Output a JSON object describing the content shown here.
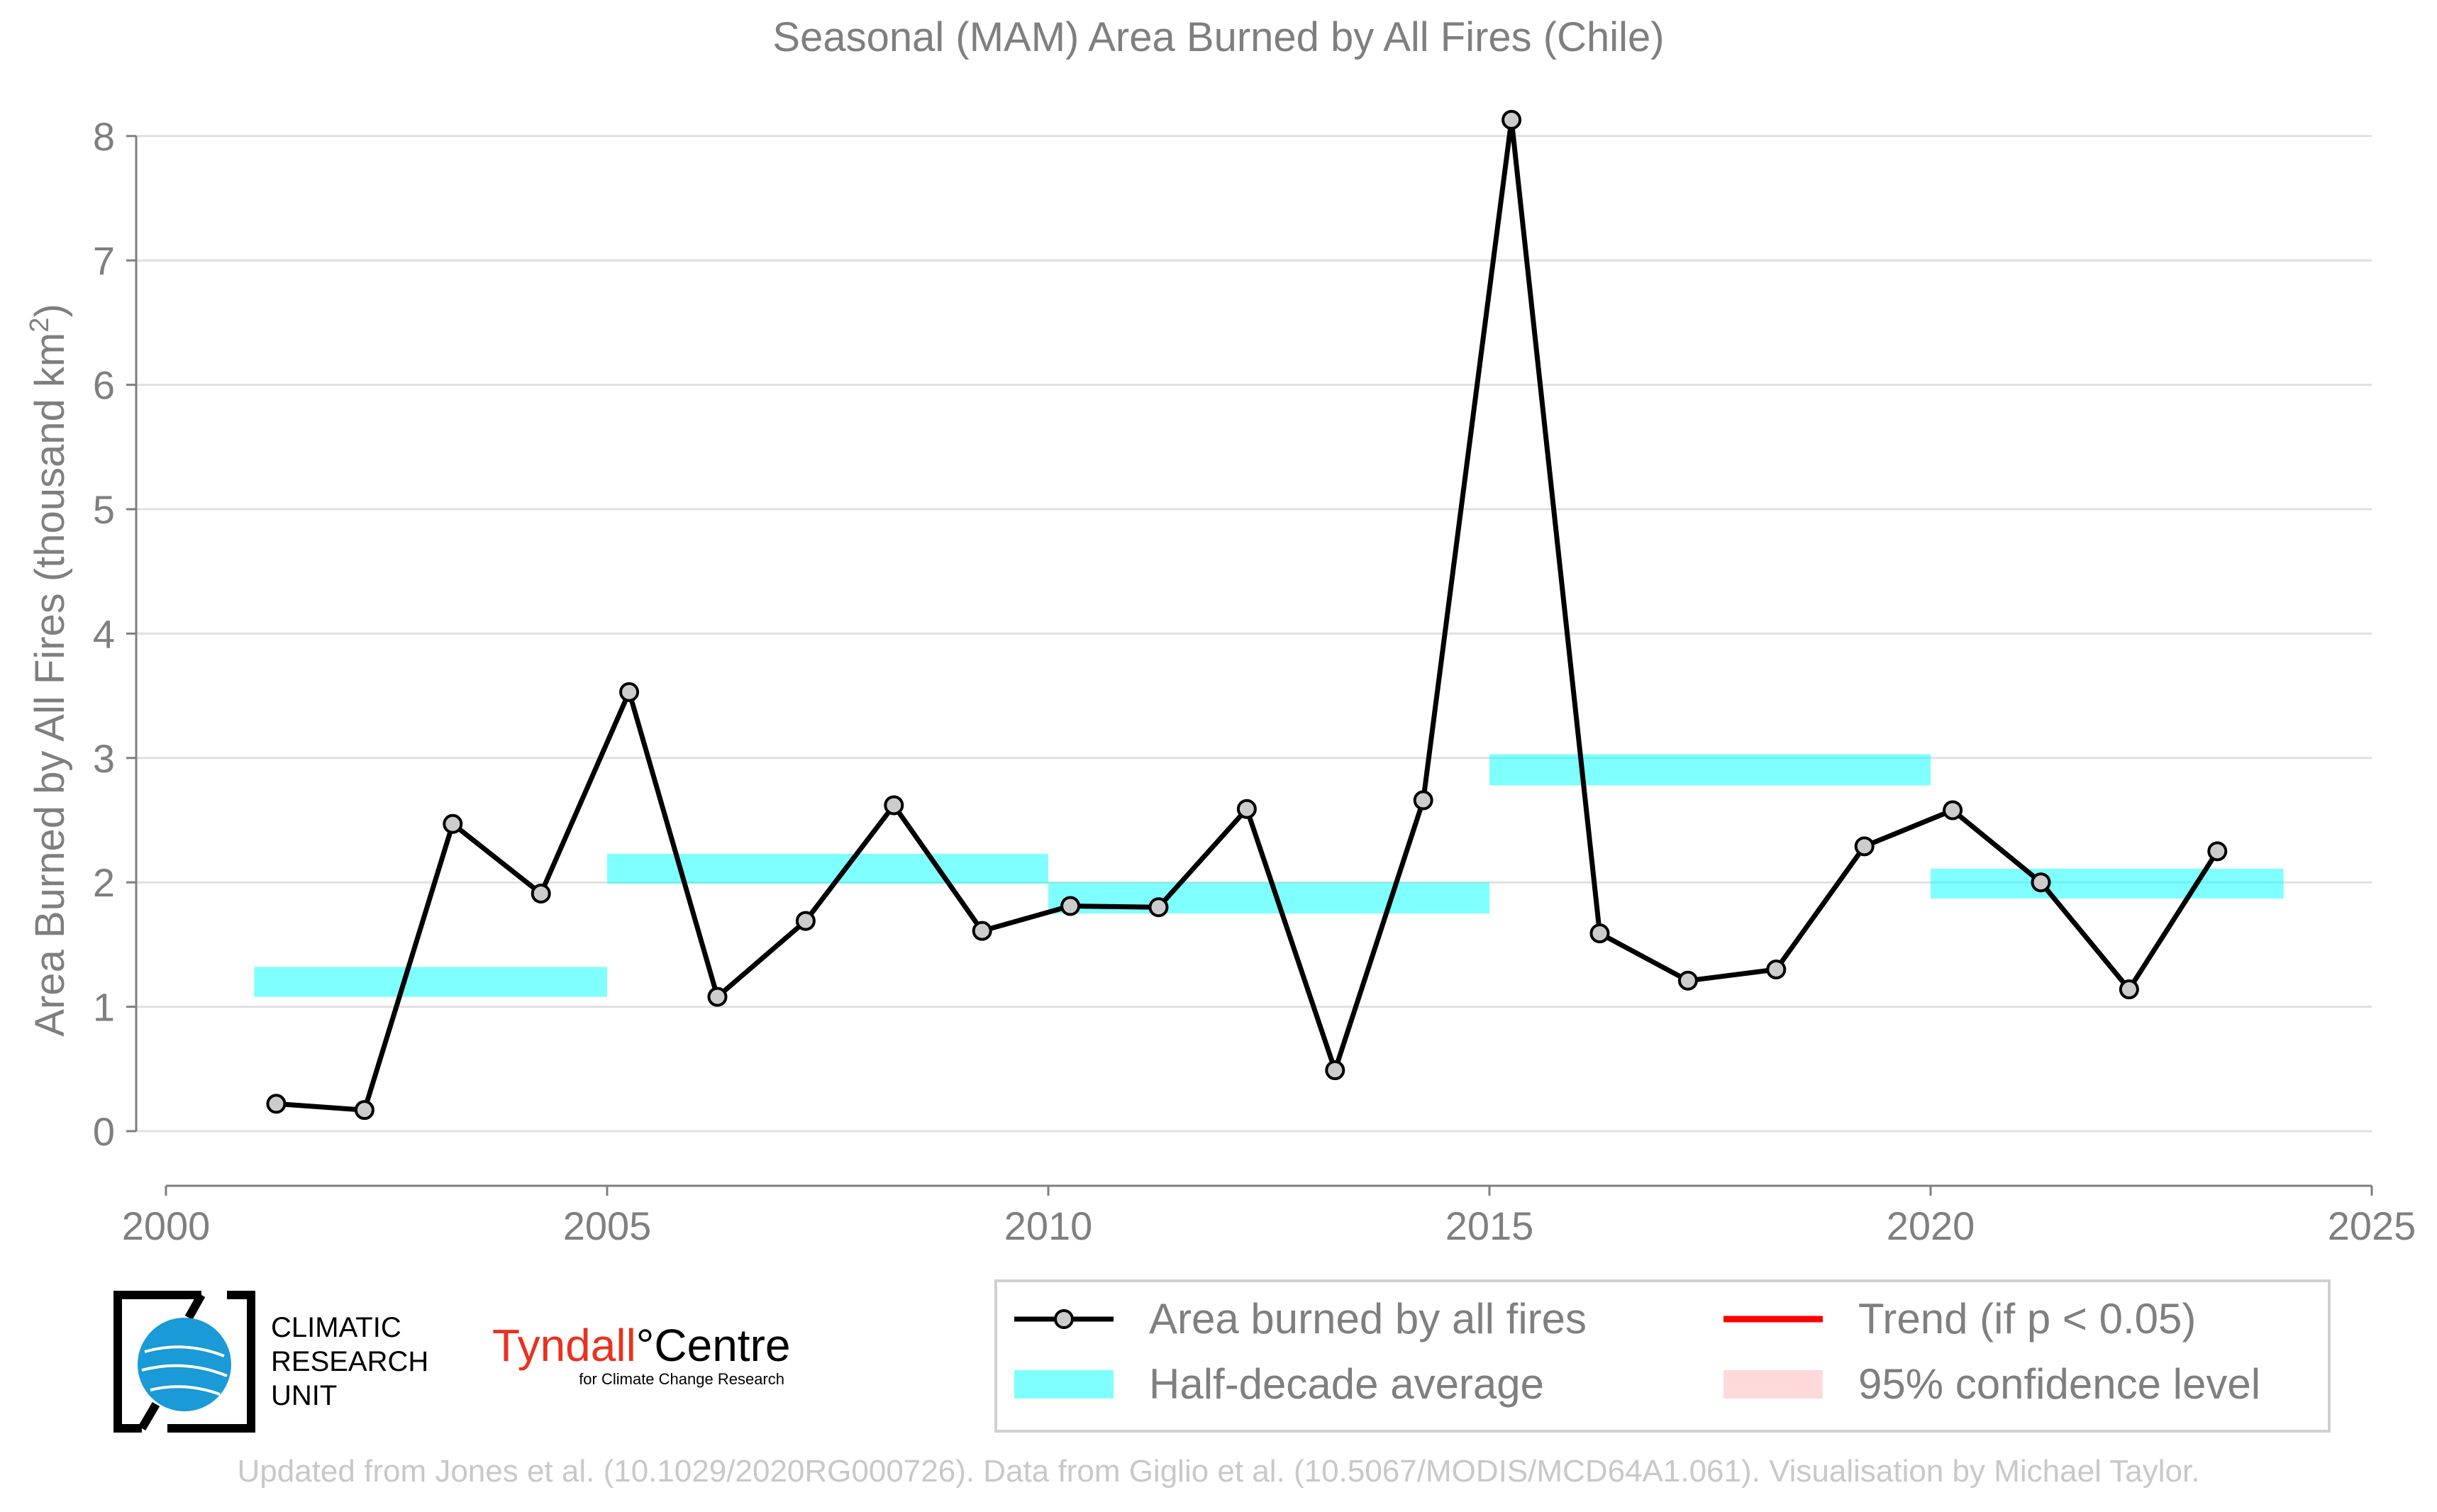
{
  "chart_data": {
    "type": "line",
    "title": "Seasonal (MAM) Area Burned by All Fires (Chile)",
    "xlabel": "",
    "ylabel": "Area Burned by All Fires (thousand km",
    "ylabel_superscript": "2",
    "ylabel_close": ")",
    "xlim": [
      2000,
      2025
    ],
    "ylim": [
      -0.45,
      8.3
    ],
    "xticks": [
      2000,
      2005,
      2010,
      2015,
      2020,
      2025
    ],
    "yticks": [
      0,
      1,
      2,
      3,
      4,
      5,
      6,
      7,
      8
    ],
    "grid": "horizontal",
    "legend_position": "bottom-right",
    "series": [
      {
        "name": "Area burned by all fires",
        "color": "#000000",
        "marker_fill": "#cccccc",
        "x": [
          2001.25,
          2002.25,
          2003.25,
          2004.25,
          2005.25,
          2006.25,
          2007.25,
          2008.25,
          2009.25,
          2010.25,
          2011.25,
          2012.25,
          2013.25,
          2014.25,
          2015.25,
          2016.25,
          2017.25,
          2018.25,
          2019.25,
          2020.25,
          2021.25,
          2022.25,
          2023.25
        ],
        "y": [
          0.22,
          0.17,
          2.47,
          1.91,
          3.53,
          1.08,
          1.69,
          2.62,
          1.61,
          1.81,
          1.8,
          2.59,
          0.49,
          2.66,
          8.13,
          1.59,
          1.21,
          1.3,
          2.29,
          2.58,
          2.0,
          1.14,
          2.25
        ]
      }
    ],
    "half_decade_average": {
      "name": "Half-decade average",
      "color": "#00ffff",
      "opacity": 0.5,
      "bands": [
        {
          "start": 2001,
          "end": 2005,
          "low": 1.08,
          "high": 1.32
        },
        {
          "start": 2005,
          "end": 2010,
          "low": 1.99,
          "high": 2.23
        },
        {
          "start": 2010,
          "end": 2015,
          "low": 1.75,
          "high": 2.0
        },
        {
          "start": 2015,
          "end": 2020,
          "low": 2.78,
          "high": 3.03
        },
        {
          "start": 2020,
          "end": 2024,
          "low": 1.87,
          "high": 2.11
        }
      ]
    },
    "legend": [
      {
        "label": "Area burned by all fires",
        "kind": "line-marker",
        "color": "#000000"
      },
      {
        "label": "Trend (if p < 0.05)",
        "kind": "line",
        "color": "#ff0000"
      },
      {
        "label": "Half-decade average",
        "kind": "band",
        "color": "#00ffff"
      },
      {
        "label": "95% confidence level",
        "kind": "band",
        "color": "#ffb6b6"
      }
    ]
  },
  "logos": {
    "cru_lines": [
      "CLIMATIC",
      "RESEARCH",
      "UNIT"
    ],
    "tyndall_name": "Tyndall",
    "tyndall_degree": "°",
    "tyndall_centre": "Centre",
    "tyndall_sub": "for Climate Change Research",
    "tyndall_color": "#e8321e",
    "cru_globe_color": "#1a9ad6"
  },
  "footer": "Updated from Jones et al. (10.1029/2020RG000726). Data from Giglio et al. (10.5067/MODIS/MCD64A1.061). Visualisation by Michael Taylor."
}
